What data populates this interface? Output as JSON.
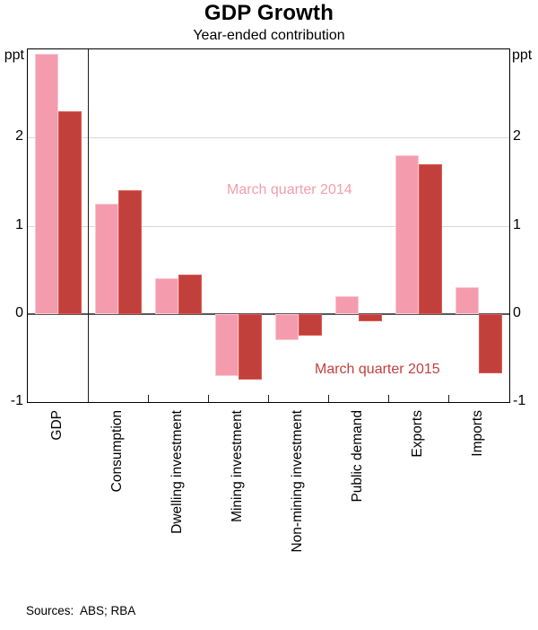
{
  "chart_data": {
    "type": "bar",
    "title": "GDP Growth",
    "subtitle": "Year-ended contribution",
    "unit_label": "ppt",
    "categories": [
      "GDP",
      "Consumption",
      "Dwelling investment",
      "Mining investment",
      "Non-mining investment",
      "Public demand",
      "Exports",
      "Imports"
    ],
    "series": [
      {
        "name": "March quarter 2014",
        "color": "#f49cad",
        "values": [
          2.95,
          1.25,
          0.4,
          -0.7,
          -0.3,
          0.2,
          1.8,
          0.3
        ]
      },
      {
        "name": "March quarter 2015",
        "color": "#c2403c",
        "values": [
          2.3,
          1.4,
          0.45,
          -0.75,
          -0.25,
          -0.08,
          1.7,
          -0.67
        ]
      }
    ],
    "ylim": [
      -1,
      3
    ],
    "yticks": [
      2,
      1,
      0,
      -1
    ],
    "gridlines": [
      2,
      1
    ],
    "zero_line": true,
    "separator_after_first_category": true,
    "legend_position": "inline-annotations",
    "grid": "horizontal"
  },
  "footer": {
    "source": "Sources:  ABS; RBA"
  }
}
